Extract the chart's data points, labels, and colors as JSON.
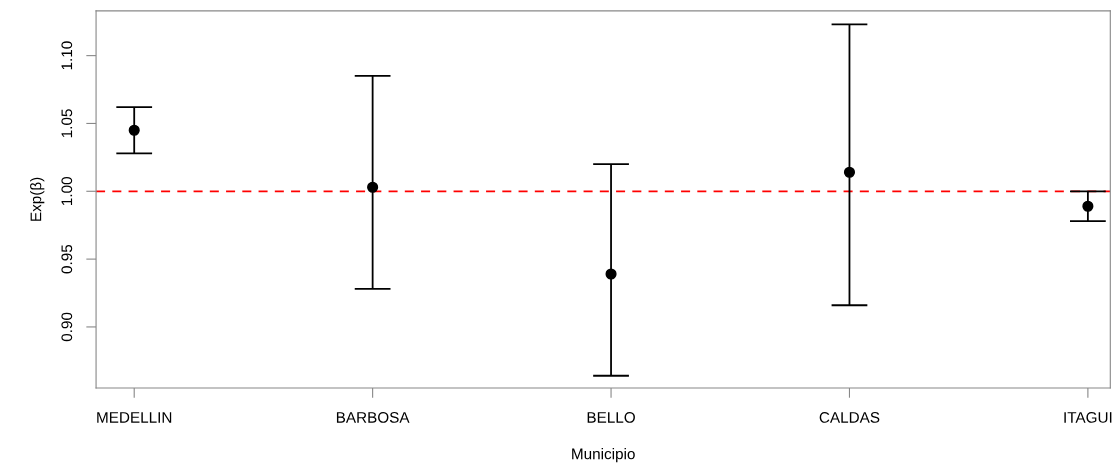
{
  "chart_data": {
    "type": "scatter",
    "xlabel": "Municipio",
    "ylabel": "Exp(β)",
    "categories": [
      "MEDELLIN",
      "BARBOSA",
      "BELLO",
      "CALDAS",
      "ITAGUI"
    ],
    "series": [
      {
        "color": "#000000",
        "values": [
          1.045,
          1.003,
          0.939,
          1.014,
          0.989
        ],
        "errors": [
          [
            1.028,
            1.062
          ],
          [
            0.928,
            1.085
          ],
          [
            0.864,
            1.02
          ],
          [
            0.916,
            1.123
          ],
          [
            0.978,
            1.0
          ]
        ]
      }
    ],
    "marker": "circle",
    "ylim": [
      0.855,
      1.133
    ],
    "yticks": [
      {
        "value": 0.9,
        "label": "0.90"
      },
      {
        "value": 0.95,
        "label": "0.95"
      },
      {
        "value": 1.0,
        "label": "1.00"
      },
      {
        "value": 1.05,
        "label": "1.05"
      },
      {
        "value": 1.1,
        "label": "1.10"
      }
    ],
    "ref_lines": [
      {
        "axis": "y",
        "value": 1.0,
        "color": "#ff0000",
        "line_style": "dashed"
      }
    ],
    "grid": false,
    "legend": false
  }
}
